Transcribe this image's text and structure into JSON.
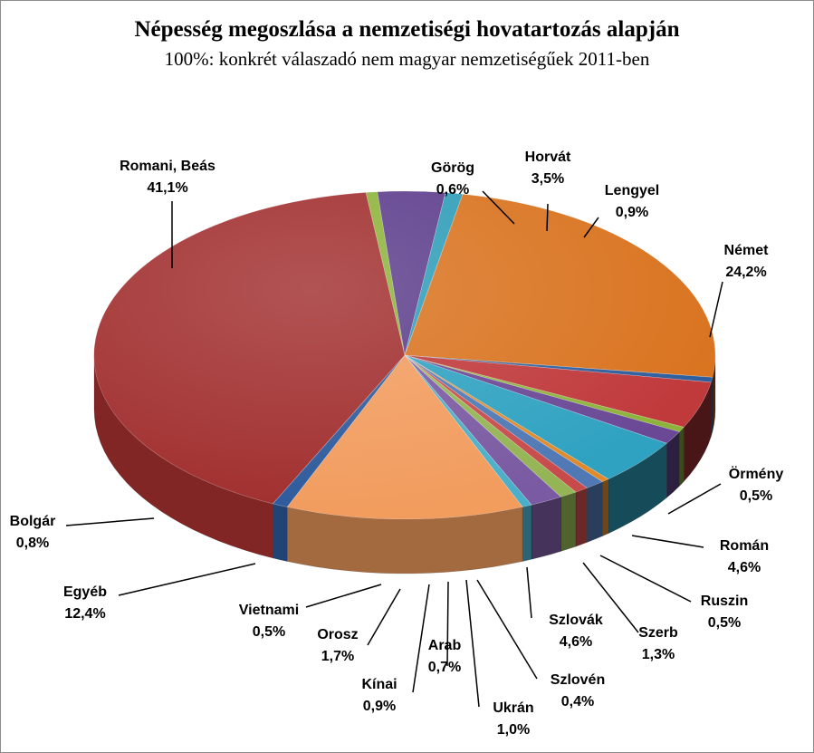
{
  "chart_data": {
    "type": "pie",
    "title": "Népesség megoszlása a nemzetiségi hovatartozás alapján",
    "subtitle": "100%:  konkrét válaszadó nem magyar nemzetiségűek 2011-ben",
    "slices": [
      {
        "name": "Görög",
        "value_label": "0,6%",
        "value": 0.6,
        "color": "#8db33b"
      },
      {
        "name": "Horvát",
        "value_label": "3,5%",
        "value": 3.5,
        "color": "#5d3d8c"
      },
      {
        "name": "Lengyel",
        "value_label": "0,9%",
        "value": 0.9,
        "color": "#2f9db8"
      },
      {
        "name": "Német",
        "value_label": "24,2%",
        "value": 24.2,
        "color": "#d9731f"
      },
      {
        "name": "Örmény",
        "value_label": "0,5%",
        "value": 0.5,
        "color": "#2e5e9e"
      },
      {
        "name": "Román",
        "value_label": "4,6%",
        "value": 4.6,
        "color": "#c0393b"
      },
      {
        "name": "Ruszin",
        "value_label": "0,5%",
        "value": 0.5,
        "color": "#8db33b"
      },
      {
        "name": "Szerb",
        "value_label": "1,3%",
        "value": 1.3,
        "color": "#6a4896"
      },
      {
        "name": "Szlovák",
        "value_label": "4,6%",
        "value": 4.6,
        "color": "#2fa2c1"
      },
      {
        "name": "Szlovén",
        "value_label": "0,4%",
        "value": 0.4,
        "color": "#e08a2c"
      },
      {
        "name": "Ukrán",
        "value_label": "1,0%",
        "value": 1.0,
        "color": "#4f78b5"
      },
      {
        "name": "Arab",
        "value_label": "0,7%",
        "value": 0.7,
        "color": "#c84b4b"
      },
      {
        "name": "Kínai",
        "value_label": "0,9%",
        "value": 0.9,
        "color": "#94b455"
      },
      {
        "name": "Orosz",
        "value_label": "1,7%",
        "value": 1.7,
        "color": "#7a5aa2"
      },
      {
        "name": "Vietnami",
        "value_label": "0,5%",
        "value": 0.5,
        "color": "#4aafc8"
      },
      {
        "name": "Egyéb",
        "value_label": "12,4%",
        "value": 12.4,
        "color": "#f29c5e"
      },
      {
        "name": "Bolgár",
        "value_label": "0,8%",
        "value": 0.8,
        "color": "#2d5a9c"
      },
      {
        "name": "Romani, Beás",
        "value_label": "41,1%",
        "value": 41.1,
        "color": "#a12e2e"
      }
    ]
  }
}
